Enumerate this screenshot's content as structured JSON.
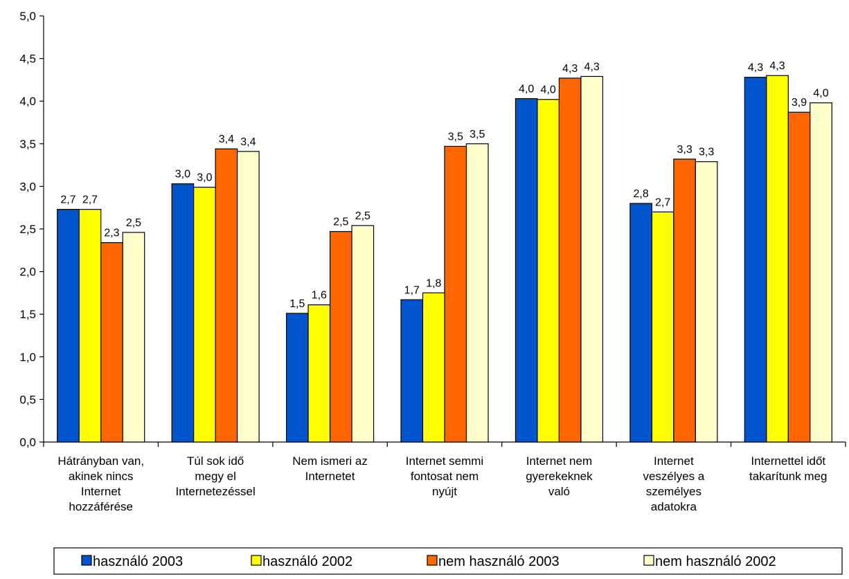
{
  "chart_data": {
    "type": "bar",
    "title": "",
    "xlabel": "",
    "ylabel": "",
    "ylim": [
      0,
      5
    ],
    "ytick_step": 0.5,
    "yticks": [
      "0,0",
      "0,5",
      "1,0",
      "1,5",
      "2,0",
      "2,5",
      "3,0",
      "3,5",
      "4,0",
      "4,5",
      "5,0"
    ],
    "grid": false,
    "legend_position": "bottom",
    "categories": [
      [
        "Hátrányban van,",
        "akinek nincs",
        "Internet",
        "hozzáférése"
      ],
      [
        "Túl sok idő",
        "megy el",
        "Internetezéssel"
      ],
      [
        "Nem ismeri az",
        "Internetet"
      ],
      [
        "Internet semmi",
        "fontosat nem",
        "nyújt"
      ],
      [
        "Internet nem",
        "gyerekeknek",
        "való"
      ],
      [
        "Internet",
        "veszélyes a",
        "személyes",
        "adatokra"
      ],
      [
        "Internettel időt",
        "takarítunk meg"
      ]
    ],
    "series": [
      {
        "name": "használó 2003",
        "color": "#0055cc",
        "values": [
          2.73,
          3.03,
          1.51,
          1.67,
          4.03,
          2.8,
          4.28
        ],
        "labels": [
          "2,7",
          "3,0",
          "1,5",
          "1,7",
          "4,0",
          "2,8",
          "4,3"
        ]
      },
      {
        "name": "használó 2002",
        "color": "#ffff00",
        "values": [
          2.73,
          2.99,
          1.61,
          1.75,
          4.02,
          2.7,
          4.3
        ],
        "labels": [
          "2,7",
          "3,0",
          "1,6",
          "1,8",
          "4,0",
          "2,7",
          "4,3"
        ]
      },
      {
        "name": "nem használó 2003",
        "color": "#ff6600",
        "values": [
          2.34,
          3.44,
          2.47,
          3.47,
          4.27,
          3.32,
          3.87
        ],
        "labels": [
          "2,3",
          "3,4",
          "2,5",
          "3,5",
          "4,3",
          "3,3",
          "3,9"
        ]
      },
      {
        "name": "nem használó 2002",
        "color": "#ffffcc",
        "values": [
          2.46,
          3.41,
          2.54,
          3.5,
          4.29,
          3.29,
          3.98
        ],
        "labels": [
          "2,5",
          "3,4",
          "2,5",
          "3,5",
          "4,3",
          "3,3",
          "4,0"
        ]
      }
    ]
  }
}
